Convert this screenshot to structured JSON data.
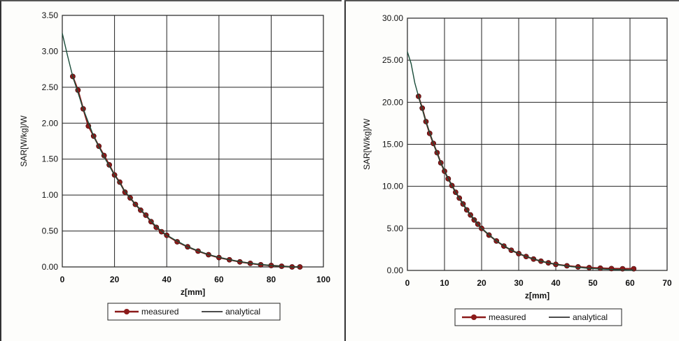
{
  "chart_data": [
    {
      "type": "scatter",
      "xlabel": "z[mm]",
      "ylabel": "SAR[W/kg]/W",
      "xlim": [
        0,
        100
      ],
      "ylim": [
        0,
        3.5
      ],
      "x_ticks": [
        "0",
        "20",
        "40",
        "60",
        "80",
        "100"
      ],
      "y_ticks": [
        "0.00",
        "0.50",
        "1.00",
        "1.50",
        "2.00",
        "2.50",
        "3.00",
        "3.50"
      ],
      "grid": true,
      "legend_position": "bottom",
      "series": [
        {
          "name": "measured",
          "style": "marker-line",
          "color": "#8b1a1a",
          "x": [
            4,
            6,
            8,
            10,
            12,
            14,
            16,
            18,
            20,
            22,
            24,
            26,
            28,
            30,
            32,
            34,
            36,
            38,
            40,
            44,
            48,
            52,
            56,
            60,
            64,
            68,
            72,
            76,
            80,
            84,
            88,
            91
          ],
          "y": [
            2.65,
            2.46,
            2.2,
            1.96,
            1.82,
            1.68,
            1.55,
            1.42,
            1.28,
            1.18,
            1.04,
            0.96,
            0.87,
            0.79,
            0.72,
            0.63,
            0.55,
            0.49,
            0.44,
            0.35,
            0.28,
            0.22,
            0.17,
            0.13,
            0.1,
            0.07,
            0.05,
            0.03,
            0.02,
            0.01,
            0.0,
            0.0
          ]
        },
        {
          "name": "analytical",
          "style": "line",
          "color": "#1a4d3a",
          "x": [
            0,
            2,
            4,
            8,
            12,
            16,
            20,
            24,
            28,
            32,
            36,
            40,
            48,
            56,
            64,
            72,
            80,
            88,
            91
          ],
          "y": [
            3.25,
            2.94,
            2.65,
            2.2,
            1.82,
            1.53,
            1.28,
            1.05,
            0.87,
            0.72,
            0.56,
            0.44,
            0.28,
            0.17,
            0.1,
            0.05,
            0.02,
            0.0,
            0.0
          ]
        }
      ]
    },
    {
      "type": "scatter",
      "xlabel": "z[mm]",
      "ylabel": "SAR[W/kg]/W",
      "xlim": [
        0,
        70
      ],
      "ylim": [
        0,
        30
      ],
      "x_ticks": [
        "0",
        "10",
        "20",
        "30",
        "40",
        "50",
        "60",
        "70"
      ],
      "y_ticks": [
        "0.00",
        "5.00",
        "10.00",
        "15.00",
        "20.00",
        "25.00",
        "30.00"
      ],
      "grid": true,
      "legend_position": "bottom",
      "series": [
        {
          "name": "measured",
          "style": "marker-line",
          "color": "#8b1a1a",
          "x": [
            3,
            4,
            5,
            6,
            7,
            8,
            9,
            10,
            11,
            12,
            13,
            14,
            15,
            16,
            17,
            18,
            19,
            20,
            22,
            24,
            26,
            28,
            30,
            32,
            34,
            36,
            38,
            40,
            43,
            46,
            49,
            52,
            55,
            58,
            61
          ],
          "y": [
            20.7,
            19.3,
            17.7,
            16.3,
            15.1,
            14.0,
            12.8,
            11.8,
            10.9,
            10.1,
            9.3,
            8.6,
            7.9,
            7.2,
            6.6,
            6.0,
            5.5,
            5.0,
            4.2,
            3.5,
            2.9,
            2.4,
            2.0,
            1.65,
            1.35,
            1.1,
            0.9,
            0.72,
            0.55,
            0.42,
            0.33,
            0.27,
            0.22,
            0.2,
            0.2
          ]
        },
        {
          "name": "analytical",
          "style": "line",
          "color": "#1a4d3a",
          "x": [
            0,
            1,
            2,
            3,
            5,
            7,
            9,
            11,
            13,
            15,
            17,
            20,
            24,
            28,
            32,
            36,
            40,
            44,
            48,
            52,
            56,
            61
          ],
          "y": [
            26.0,
            24.6,
            22.3,
            20.7,
            17.7,
            15.1,
            12.8,
            10.9,
            9.3,
            7.9,
            6.6,
            5.0,
            3.5,
            2.4,
            1.65,
            1.1,
            0.72,
            0.45,
            0.28,
            0.17,
            0.1,
            0.05
          ]
        }
      ]
    }
  ]
}
